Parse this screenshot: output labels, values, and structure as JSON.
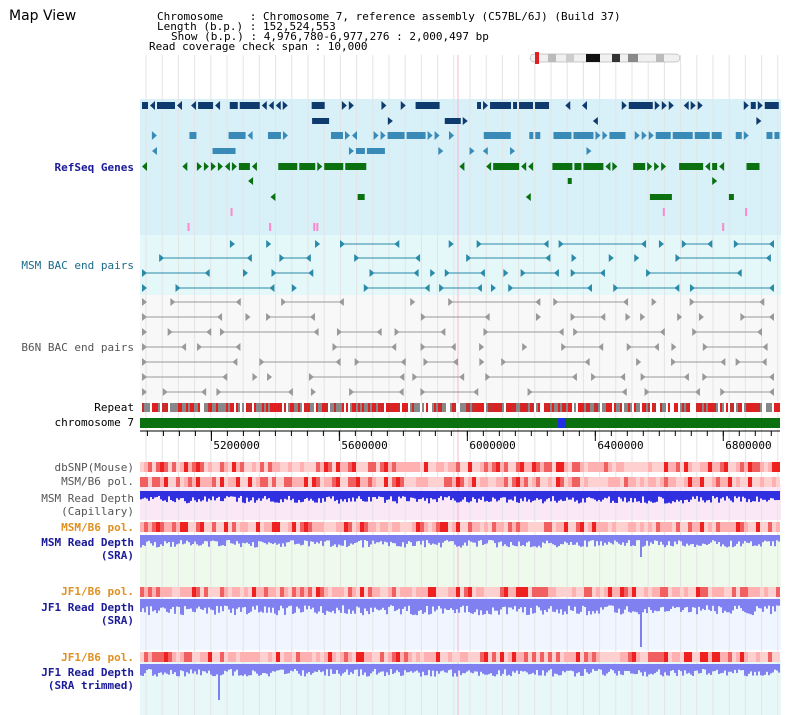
{
  "page": {
    "title": "Map View"
  },
  "info": {
    "chromosome_line": "Chromosome    : Chromosome 7, reference assembly (C57BL/6J) (Build 37)",
    "length_line": "Length (b.p.) : 152,524,553",
    "show_line": "Show (b.p.) : 4,976,780-6,977,276 : 2,000,497 bp",
    "read_line": "Read coverage check span : 10,000"
  },
  "tracks": {
    "refseq": {
      "label": "RefSeq Genes",
      "color": "#1a1a99"
    },
    "msm_bac": {
      "label": "MSM BAC end pairs",
      "color": "#1a6a8a"
    },
    "b6n_bac": {
      "label": "B6N BAC end pairs",
      "color": "#555555"
    },
    "repeat": {
      "label": "Repeat",
      "color": "#000000"
    },
    "chromosome": {
      "label": "chromosome 7",
      "color": "#000000"
    },
    "dbsnp": {
      "label": "dbSNP(Mouse)",
      "color": "#555555"
    },
    "msm_b6_pol_1": {
      "label": "MSM/B6 pol.",
      "color": "#555555"
    },
    "msm_read_cap": {
      "label_1": "MSM Read Depth",
      "label_2": "(Capillary)",
      "color": "#555555"
    },
    "msm_b6_pol_2": {
      "label": "MSM/B6 pol.",
      "color": "#e09020"
    },
    "msm_read_sra": {
      "label_1": "MSM Read Depth",
      "label_2": "(SRA)",
      "color": "#1a1a99"
    },
    "jf1_b6_pol_1": {
      "label": "JF1/B6 pol.",
      "color": "#e09020"
    },
    "jf1_read_sra": {
      "label_1": "JF1 Read Depth",
      "label_2": "(SRA)",
      "color": "#1a1a99"
    },
    "jf1_b6_pol_2": {
      "label": "JF1/B6 pol.",
      "color": "#e09020"
    },
    "jf1_read_trim": {
      "label_1": "JF1 Read Depth",
      "label_2": "(SRA trimmed)",
      "color": "#1a1a99"
    }
  },
  "axis": {
    "start_bp": 4976780,
    "end_bp": 6977276,
    "ticks": [
      {
        "value": 5200000,
        "label": "5200000"
      },
      {
        "value": 5600000,
        "label": "5600000"
      },
      {
        "value": 6000000,
        "label": "6000000"
      },
      {
        "value": 6400000,
        "label": "6400000"
      },
      {
        "value": 6800000,
        "label": "6800000"
      }
    ]
  },
  "colors": {
    "refseq_dark": "#0f3a6e",
    "refseq_mid": "#3a8ab8",
    "refseq_green": "#0a7010",
    "refseq_pink": "#ff88cc",
    "msm_feature": "#2a8aa8",
    "b6n_feature": "#999999",
    "chromosome_bar": "#0a7010",
    "chromosome_marker": "#2030e0",
    "read_depth_blue": "#3030e0",
    "read_depth_light": "#8080f0",
    "pol_red": "#ee2020",
    "pol_pink": "#ffb0b0"
  }
}
